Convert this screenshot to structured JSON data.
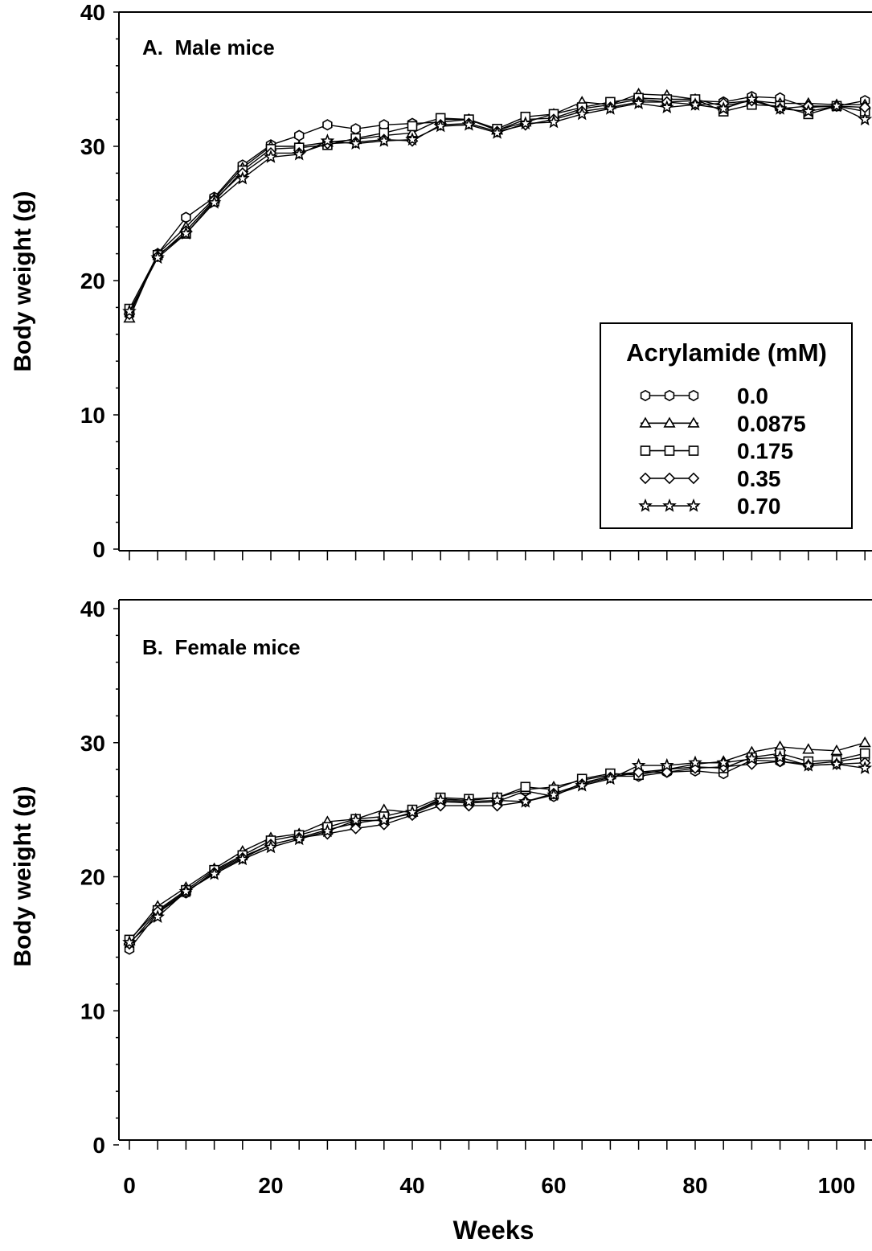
{
  "chart_data": [
    {
      "type": "line",
      "title": "A.  Male mice",
      "xlabel": "",
      "ylabel": "Body weight (g)",
      "xlim": [
        -1.5,
        104
      ],
      "ylim": [
        0,
        40
      ],
      "y_ticks": [
        "0",
        "10",
        "20",
        "30",
        "40"
      ],
      "x_ticks": [],
      "x": [
        0,
        4,
        8,
        12,
        16,
        20,
        24,
        28,
        32,
        36,
        40,
        44,
        48,
        52,
        56,
        60,
        64,
        68,
        72,
        76,
        80,
        84,
        88,
        92,
        96,
        100,
        104
      ],
      "series": [
        {
          "name": "0.0",
          "marker": "hexagon",
          "values": [
            17.5,
            22.0,
            24.7,
            26.2,
            28.6,
            30.1,
            30.8,
            31.6,
            31.3,
            31.6,
            31.7,
            31.8,
            32.0,
            31.2,
            32.0,
            32.1,
            32.8,
            33.1,
            33.5,
            33.3,
            33.4,
            33.3,
            33.7,
            33.6,
            32.9,
            33.0,
            33.4
          ]
        },
        {
          "name": "0.0875",
          "marker": "triangle",
          "values": [
            17.2,
            22.0,
            24.0,
            26.1,
            28.4,
            30.0,
            30.0,
            30.3,
            30.5,
            30.8,
            31.0,
            32.0,
            32.0,
            31.2,
            31.8,
            32.4,
            33.3,
            33.1,
            33.9,
            33.8,
            33.5,
            33.0,
            33.4,
            33.2,
            33.2,
            33.1,
            33.1
          ]
        },
        {
          "name": "0.175",
          "marker": "square",
          "values": [
            17.9,
            21.9,
            23.5,
            25.9,
            28.2,
            29.8,
            29.9,
            30.1,
            30.6,
            31.0,
            31.5,
            32.1,
            32.0,
            31.3,
            32.2,
            32.4,
            32.9,
            33.3,
            33.6,
            33.5,
            33.5,
            32.6,
            33.1,
            33.0,
            32.4,
            33.0,
            32.6
          ]
        },
        {
          "name": "0.35",
          "marker": "diamond",
          "values": [
            17.5,
            21.8,
            23.7,
            26.0,
            28.0,
            29.5,
            29.5,
            30.2,
            30.3,
            30.5,
            30.4,
            31.6,
            31.7,
            31.1,
            31.6,
            32.0,
            32.6,
            32.9,
            33.3,
            33.3,
            33.1,
            33.2,
            33.4,
            32.8,
            33.0,
            33.0,
            32.9
          ]
        },
        {
          "name": "0.70",
          "marker": "star",
          "values": [
            17.7,
            21.7,
            23.5,
            25.8,
            27.6,
            29.2,
            29.4,
            30.4,
            30.2,
            30.4,
            30.5,
            31.5,
            31.6,
            31.0,
            31.7,
            31.8,
            32.4,
            32.8,
            33.2,
            32.9,
            33.1,
            32.8,
            33.5,
            32.8,
            32.6,
            33.0,
            32.0
          ]
        }
      ]
    },
    {
      "type": "line",
      "title": "B.  Female mice",
      "xlabel": "Weeks",
      "ylabel": "Body weight (g)",
      "xlim": [
        -1.5,
        104
      ],
      "ylim": [
        0,
        40
      ],
      "y_ticks": [
        "0",
        "10",
        "20",
        "30",
        "40"
      ],
      "x_ticks": [
        "0",
        "20",
        "40",
        "60",
        "80",
        "100"
      ],
      "x": [
        0,
        4,
        8,
        12,
        16,
        20,
        24,
        28,
        32,
        36,
        40,
        44,
        48,
        52,
        56,
        60,
        64,
        68,
        72,
        76,
        80,
        84,
        88,
        92,
        96,
        100,
        104
      ],
      "series": [
        {
          "name": "0.0",
          "marker": "hexagon",
          "values": [
            14.6,
            17.3,
            18.8,
            20.4,
            21.5,
            22.4,
            22.9,
            23.5,
            24.0,
            24.3,
            24.7,
            25.6,
            25.5,
            25.6,
            26.4,
            26.0,
            27.0,
            27.5,
            27.5,
            27.8,
            27.9,
            27.7,
            28.7,
            28.6,
            28.4,
            28.6,
            28.9
          ]
        },
        {
          "name": "0.0875",
          "marker": "triangle",
          "values": [
            15.2,
            17.8,
            19.2,
            20.6,
            21.9,
            22.9,
            23.2,
            24.1,
            24.3,
            25.0,
            24.8,
            25.8,
            25.7,
            25.9,
            26.5,
            26.7,
            27.2,
            27.6,
            27.8,
            28.0,
            28.4,
            28.6,
            29.3,
            29.7,
            29.5,
            29.4,
            30.0
          ]
        },
        {
          "name": "0.175",
          "marker": "square",
          "values": [
            15.3,
            17.5,
            19.0,
            20.5,
            21.6,
            22.7,
            23.1,
            23.7,
            24.3,
            24.5,
            25.0,
            25.9,
            25.8,
            25.9,
            26.7,
            26.5,
            27.3,
            27.7,
            27.6,
            28.0,
            28.2,
            28.1,
            28.9,
            29.2,
            28.6,
            28.7,
            29.2
          ]
        },
        {
          "name": "0.35",
          "marker": "diamond",
          "values": [
            15.0,
            17.4,
            18.9,
            20.3,
            21.4,
            22.4,
            22.9,
            23.2,
            23.6,
            23.9,
            24.6,
            25.3,
            25.3,
            25.3,
            25.6,
            26.2,
            26.9,
            27.4,
            27.8,
            27.8,
            28.1,
            28.2,
            28.4,
            28.6,
            28.3,
            28.4,
            28.5
          ]
        },
        {
          "name": "0.70",
          "marker": "star",
          "values": [
            15.1,
            17.0,
            18.9,
            20.2,
            21.3,
            22.2,
            22.8,
            23.4,
            24.2,
            24.2,
            24.8,
            25.7,
            25.6,
            25.7,
            25.6,
            26.1,
            26.8,
            27.3,
            28.3,
            28.3,
            28.5,
            28.5,
            28.8,
            28.9,
            28.3,
            28.4,
            28.1
          ]
        }
      ]
    }
  ],
  "legend": {
    "title": "Acrylamide (mM)",
    "placement": "inside panel A, lower-right",
    "items": [
      "0.0",
      "0.0875",
      "0.175",
      "0.35",
      "0.70"
    ]
  }
}
